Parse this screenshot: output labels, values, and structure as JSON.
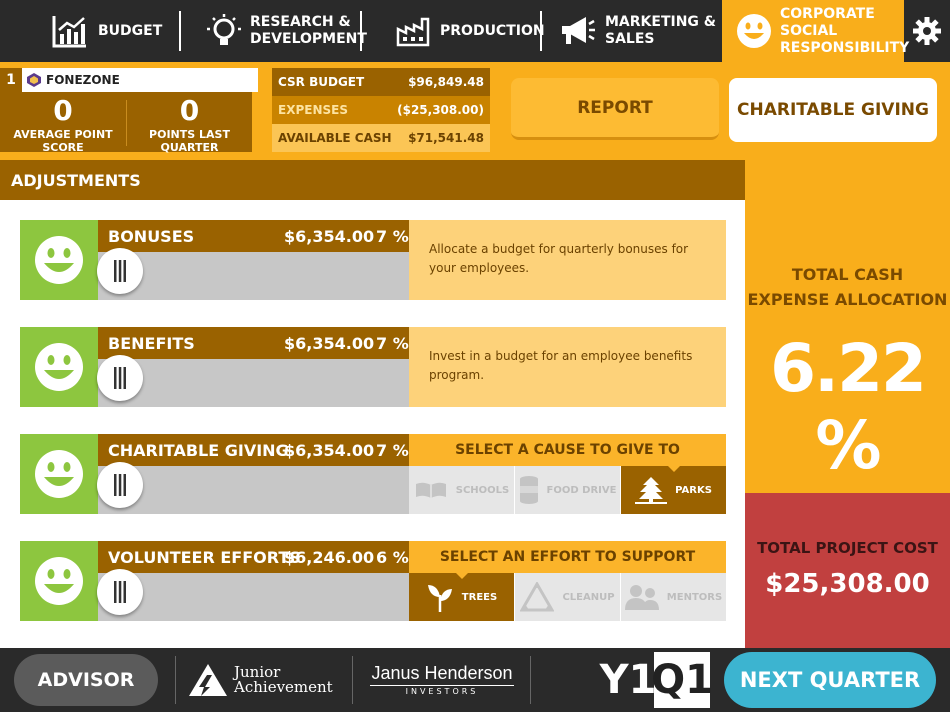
{
  "nav": {
    "tabs": [
      {
        "label": "BUDGET",
        "icon": "chart-icon"
      },
      {
        "label": "RESEARCH & DEVELOPMENT",
        "line1": "RESEARCH &",
        "line2": "DEVELOPMENT",
        "icon": "lightbulb-icon"
      },
      {
        "label": "PRODUCTION",
        "icon": "factory-icon"
      },
      {
        "label": "MARKETING & SALES",
        "line1": "MARKETING &",
        "line2": "SALES",
        "icon": "megaphone-icon"
      },
      {
        "label": "CORPORATE SOCIAL RESPONSIBILITY",
        "line1": "CORPORATE SOCIAL",
        "line2": "RESPONSIBILITY",
        "icon": "smiley-icon",
        "active": true
      }
    ],
    "settings_icon": "gear-icon"
  },
  "company": {
    "rank": "1",
    "name": "FONEZONE",
    "average_point_score": "0",
    "average_point_score_label": "AVERAGE POINT SCORE",
    "points_last_quarter": "0",
    "points_last_quarter_label": "POINTS LAST QUARTER"
  },
  "budget": {
    "csr_budget_label": "CSR BUDGET",
    "csr_budget_value": "$96,849.48",
    "expenses_label": "EXPENSES",
    "expenses_value": "($25,308.00)",
    "available_cash_label": "AVAILABLE CASH",
    "available_cash_value": "$71,541.48"
  },
  "actions": {
    "report_label": "REPORT",
    "charitable_giving_label": "CHARITABLE GIVING"
  },
  "adjustments": {
    "title": "ADJUSTMENTS",
    "rows": [
      {
        "title": "BONUSES",
        "amount": "$6,354.00",
        "percent": "7 %",
        "slider_fraction": 0.07,
        "description": "Allocate a budget for quarterly bonuses for your employees."
      },
      {
        "title": "BENEFITS",
        "amount": "$6,354.00",
        "percent": "7 %",
        "slider_fraction": 0.07,
        "description": "Invest in a budget for an employee benefits program."
      },
      {
        "title": "CHARITABLE GIVING",
        "amount": "$6,354.00",
        "percent": "7 %",
        "slider_fraction": 0.07,
        "options_header": "SELECT A CAUSE TO GIVE TO",
        "options": [
          {
            "label": "SCHOOLS",
            "icon": "book-icon",
            "selected": false
          },
          {
            "label": "FOOD DRIVE",
            "icon": "can-icon",
            "selected": false
          },
          {
            "label": "PARKS",
            "icon": "tree-icon",
            "selected": true
          }
        ]
      },
      {
        "title": "VOLUNTEER EFFORTS",
        "amount": "$6,246.00",
        "percent": "6 %",
        "slider_fraction": 0.06,
        "options_header": "SELECT AN EFFORT TO SUPPORT",
        "options": [
          {
            "label": "TREES",
            "icon": "sprout-icon",
            "selected": true
          },
          {
            "label": "CLEANUP",
            "icon": "recycle-icon",
            "selected": false
          },
          {
            "label": "MENTORS",
            "icon": "people-icon",
            "selected": false
          }
        ]
      }
    ]
  },
  "summary": {
    "total_allocation_line1": "TOTAL CASH",
    "total_allocation_line2": "EXPENSE ALLOCATION",
    "total_allocation_value": "6.22 %",
    "total_project_cost_label": "TOTAL PROJECT COST",
    "total_project_cost_value": "$25,308.00"
  },
  "footer": {
    "advisor_label": "ADVISOR",
    "ja_logo_line1": "Junior",
    "ja_logo_line2": "Achievement",
    "jh_logo_line1": "Janus Henderson",
    "jh_logo_line2": "INVESTORS",
    "year": "Y1",
    "quarter": "Q1",
    "next_label": "NEXT QUARTER"
  },
  "colors": {
    "nav_bg": "#2a2a2a",
    "accent_orange": "#f9ae1b",
    "brown": "#9a6200",
    "green": "#8dc63f",
    "red": "#c1403f",
    "cyan": "#3cb4d0"
  }
}
